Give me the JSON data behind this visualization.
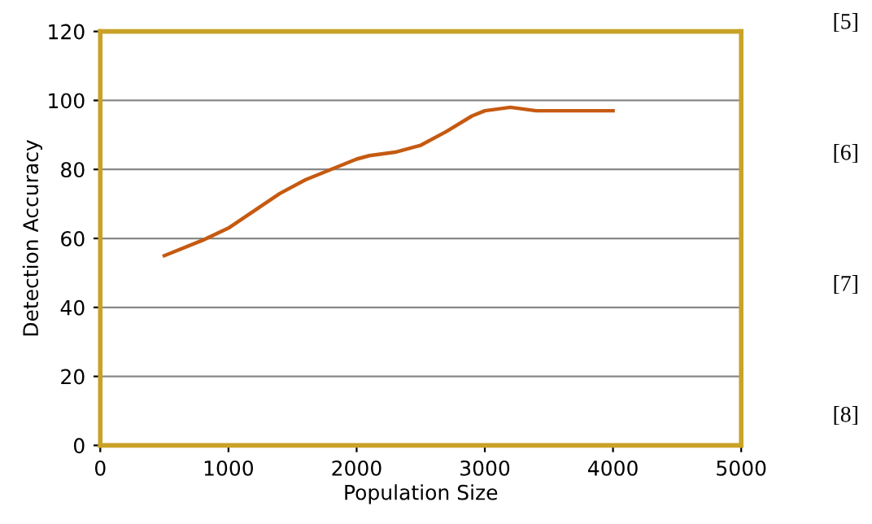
{
  "chart_data": {
    "type": "line",
    "xlabel": "Population Size",
    "ylabel": "Detection Accuracy",
    "x": [
      500,
      800,
      1000,
      1200,
      1400,
      1600,
      1800,
      2000,
      2100,
      2300,
      2500,
      2700,
      2900,
      3000,
      3200,
      3400,
      4000
    ],
    "series": [
      {
        "color": "#c55a11",
        "values": [
          55,
          59.5,
          63,
          68,
          73,
          77,
          80,
          83,
          84,
          85,
          87,
          91,
          95.5,
          97,
          98,
          97,
          97
        ]
      }
    ],
    "xlim": [
      0,
      5000
    ],
    "xticks": [
      0,
      1000,
      2000,
      3000,
      4000,
      5000
    ],
    "ylim": [
      0,
      120
    ],
    "yticks": [
      0,
      20,
      40,
      60,
      80,
      100,
      120
    ],
    "grid": "y",
    "marker": "none",
    "line_style": "solid",
    "annotations": [
      "[5]",
      "[6]",
      "[7]",
      "[8]"
    ]
  }
}
